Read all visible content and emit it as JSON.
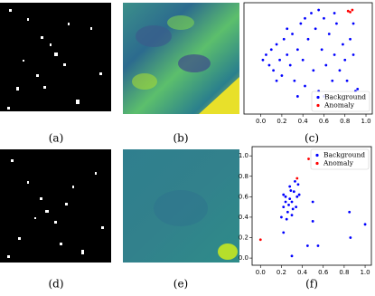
{
  "captions": [
    "(a)",
    "(b)",
    "(c)",
    "(d)",
    "(e)",
    "(f)"
  ],
  "chart_data": [
    {
      "type": "scatter",
      "legend": "lower right",
      "xlim": [
        -0.16,
        1.06
      ],
      "ylim": [
        -0.02,
        1.05
      ],
      "xticks": [
        {
          "value": 0,
          "label": "0.0"
        },
        0.2,
        0.4,
        0.6,
        0.8,
        {
          "value": 1,
          "label": "1.0"
        }
      ],
      "series": [
        {
          "name": "Background",
          "color": "#0000ff",
          "x": [
            0.02,
            0.05,
            0.08,
            0.1,
            0.12,
            0.15,
            0.18,
            0.2,
            0.22,
            0.25,
            0.28,
            0.3,
            0.32,
            0.35,
            0.38,
            0.4,
            0.42,
            0.45,
            0.48,
            0.5,
            0.52,
            0.55,
            0.58,
            0.6,
            0.62,
            0.65,
            0.68,
            0.7,
            0.72,
            0.75,
            0.78,
            0.8,
            0.82,
            0.85,
            0.88,
            0.9,
            0.92,
            0.55,
            0.42,
            0.25,
            0.15,
            0.6,
            0.35,
            0.7,
            0.88
          ],
          "values": [
            0.5,
            0.55,
            0.45,
            0.6,
            0.4,
            0.65,
            0.5,
            0.35,
            0.7,
            0.55,
            0.45,
            0.75,
            0.3,
            0.6,
            0.85,
            0.5,
            0.25,
            0.7,
            0.95,
            0.4,
            0.8,
            0.2,
            0.6,
            0.9,
            0.45,
            0.75,
            0.3,
            0.55,
            0.85,
            0.4,
            0.65,
            0.5,
            0.3,
            0.7,
            0.55,
            0.2,
            0.22,
            0.98,
            0.9,
            0.8,
            0.3,
            0.15,
            0.15,
            0.95,
            0.85
          ]
        },
        {
          "name": "Anomaly",
          "color": "#ff0000",
          "x": [
            0.83,
            0.85,
            0.87
          ],
          "values": [
            0.97,
            0.96,
            0.98
          ]
        }
      ]
    },
    {
      "type": "scatter",
      "legend": "upper right",
      "xlim": [
        -0.08,
        1.06
      ],
      "ylim": [
        -0.07,
        1.09
      ],
      "xticks": [
        {
          "value": 0,
          "label": "0.0"
        },
        0.2,
        0.4,
        0.6,
        0.8,
        {
          "value": 1,
          "label": "1.0"
        }
      ],
      "yticks": [
        {
          "value": 0,
          "label": "0.0"
        },
        0.2,
        0.4,
        0.6,
        0.8,
        {
          "value": 1,
          "label": "1.0"
        }
      ],
      "series": [
        {
          "name": "Background",
          "color": "#0000ff",
          "x": [
            0.2,
            0.22,
            0.24,
            0.26,
            0.28,
            0.3,
            0.32,
            0.34,
            0.36,
            0.25,
            0.3,
            0.35,
            0.22,
            0.28,
            0.33,
            0.27,
            0.31,
            0.24,
            0.29,
            0.37,
            0.5,
            0.5,
            0.85,
            0.86,
            1.0,
            0.45,
            0.55,
            0.3,
            0.22
          ],
          "values": [
            0.4,
            0.5,
            0.6,
            0.45,
            0.7,
            0.55,
            0.65,
            0.5,
            0.72,
            0.38,
            0.42,
            0.6,
            0.62,
            0.58,
            0.75,
            0.52,
            0.48,
            0.55,
            0.66,
            0.62,
            0.55,
            0.36,
            0.45,
            0.2,
            0.33,
            0.12,
            0.12,
            0.02,
            0.25
          ]
        },
        {
          "name": "Anomaly",
          "color": "#ff0000",
          "x": [
            0.35,
            0.46,
            0.0
          ],
          "values": [
            0.78,
            0.97,
            0.18
          ]
        }
      ]
    }
  ]
}
